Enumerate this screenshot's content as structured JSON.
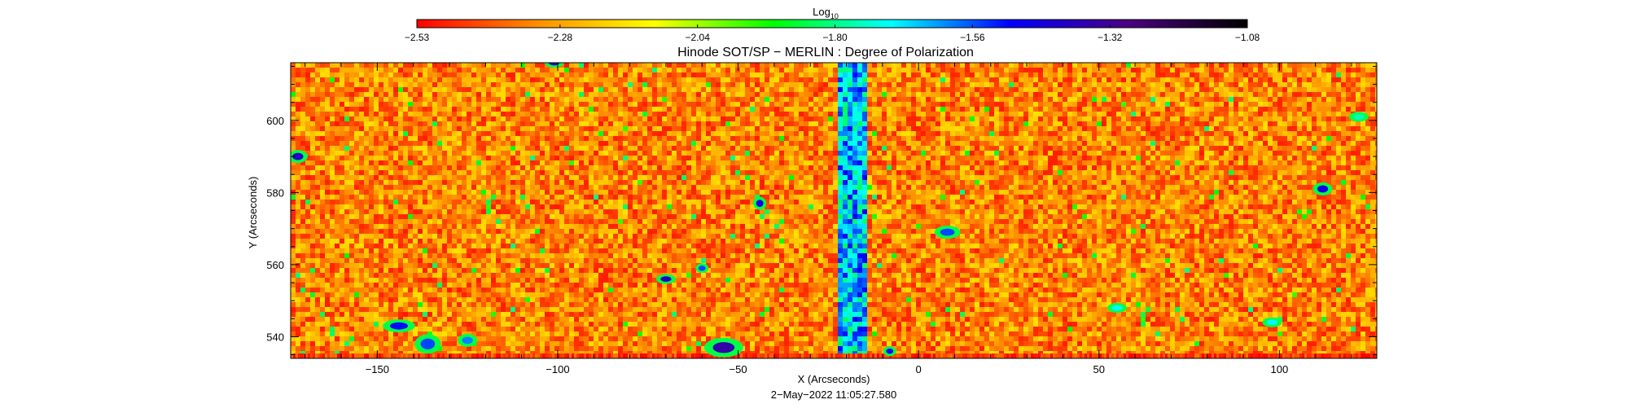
{
  "chart_data": {
    "type": "heatmap",
    "title": "Hinode SOT/SP − MERLIN : Degree of Polarization",
    "xlabel": "X (Arcseconds)",
    "ylabel": "Y (Arcseconds)",
    "timestamp": "2−May−2022 11:05:27.580",
    "xlim": [
      -174,
      127
    ],
    "ylim": [
      534,
      616
    ],
    "x_ticks": [
      -150,
      -100,
      -50,
      0,
      50,
      100
    ],
    "y_ticks": [
      540,
      560,
      580,
      600
    ],
    "x_tick_labels": [
      "−150",
      "−100",
      "−50",
      "0",
      "50",
      "100"
    ],
    "y_tick_labels": [
      "540",
      "560",
      "580",
      "600"
    ],
    "colorbar": {
      "label_base": "Log",
      "label_sub": "10",
      "range": [
        -2.53,
        -1.08
      ],
      "ticks": [
        -2.53,
        -2.28,
        -2.04,
        -1.8,
        -1.56,
        -1.32,
        -1.08
      ],
      "tick_labels": [
        "−2.53",
        "−2.28",
        "−2.04",
        "−1.80",
        "−1.56",
        "−1.32",
        "−1.08"
      ],
      "colors": [
        "#ff0000",
        "#ff8c00",
        "#ffff00",
        "#00ff00",
        "#00ffff",
        "#0000ff",
        "#4b0082",
        "#000000"
      ],
      "position": "top"
    },
    "background_level": -2.33,
    "vertical_band": {
      "x_range": [
        -23,
        -14
      ],
      "level": -1.66
    },
    "features": [
      {
        "x": -172,
        "y": 590,
        "w": 3,
        "h": 2,
        "level": -1.4
      },
      {
        "x": -101,
        "y": 616,
        "w": 3,
        "h": 1.5,
        "level": -1.4
      },
      {
        "x": -144,
        "y": 543,
        "w": 5,
        "h": 2,
        "level": -1.5
      },
      {
        "x": -136,
        "y": 538,
        "w": 4,
        "h": 3,
        "level": -1.55
      },
      {
        "x": -125,
        "y": 539,
        "w": 3,
        "h": 2,
        "level": -1.6
      },
      {
        "x": -54,
        "y": 537,
        "w": 6,
        "h": 3,
        "level": -1.35
      },
      {
        "x": -70,
        "y": 556,
        "w": 3,
        "h": 1.5,
        "level": -1.4
      },
      {
        "x": -60,
        "y": 559,
        "w": 2,
        "h": 1.5,
        "level": -1.55
      },
      {
        "x": -44,
        "y": 577,
        "w": 2,
        "h": 2,
        "level": -1.45
      },
      {
        "x": 8,
        "y": 569,
        "w": 4,
        "h": 2,
        "level": -1.55
      },
      {
        "x": 112,
        "y": 581,
        "w": 3,
        "h": 2,
        "level": -1.45
      },
      {
        "x": 55,
        "y": 548,
        "w": 3,
        "h": 1.5,
        "level": -1.7
      },
      {
        "x": 98,
        "y": 544,
        "w": 3,
        "h": 1.5,
        "level": -1.7
      },
      {
        "x": -8,
        "y": 536,
        "w": 2,
        "h": 1.5,
        "level": -1.5
      },
      {
        "x": 122,
        "y": 601,
        "w": 3,
        "h": 1.5,
        "level": -1.75
      }
    ],
    "grid": false
  }
}
